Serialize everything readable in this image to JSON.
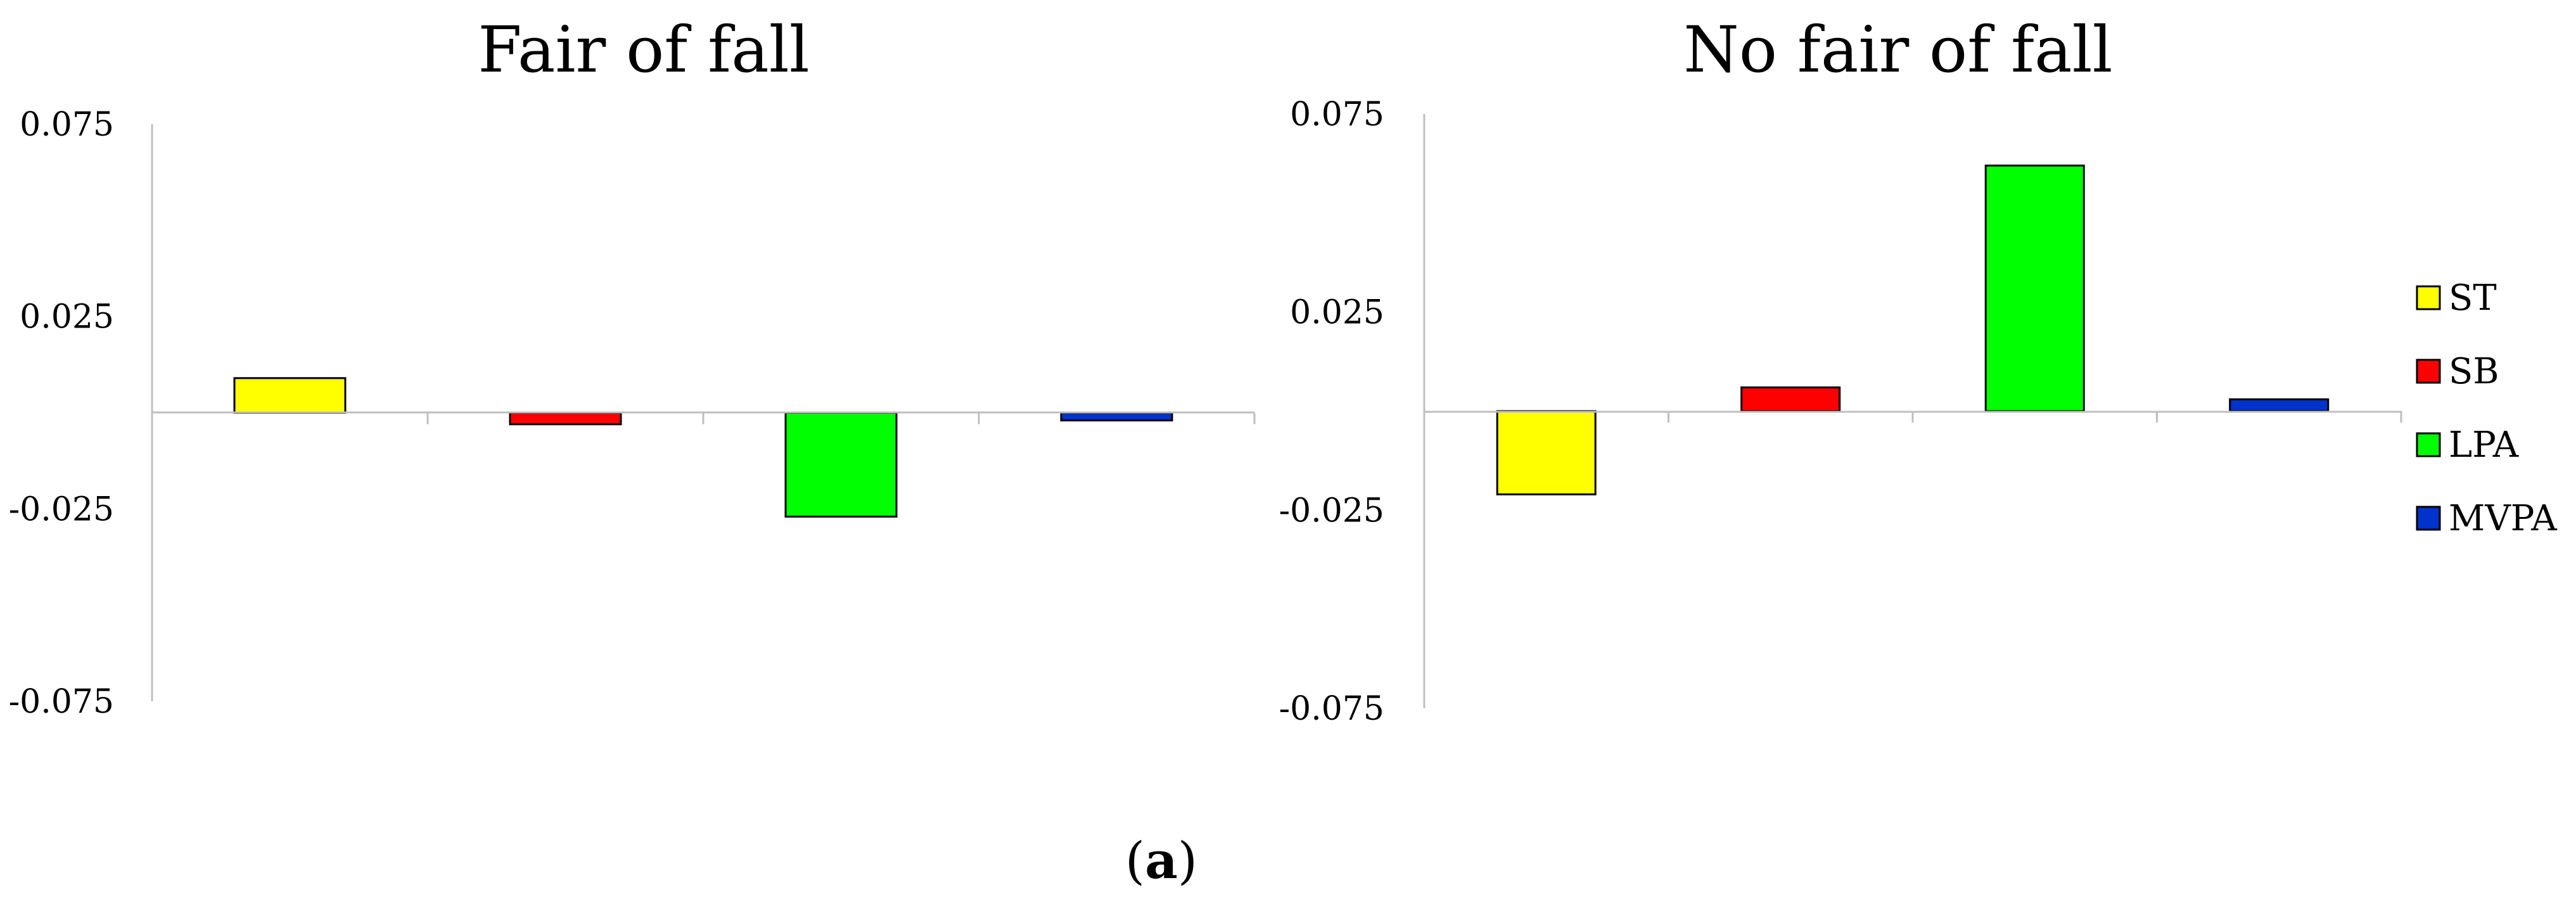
{
  "caption": {
    "open": "(",
    "letter": "a",
    "close": ")"
  },
  "legend": {
    "placement": "right",
    "items": [
      {
        "label": "ST",
        "color": "#FFFF00"
      },
      {
        "label": "SB",
        "color": "#FF0000"
      },
      {
        "label": "LPA",
        "color": "#00FF00"
      },
      {
        "label": "MVPA",
        "color": "#0033CC"
      }
    ]
  },
  "chart_data": [
    {
      "type": "bar",
      "title": "Fair of fall",
      "xlabel": "",
      "ylabel": "",
      "categories": [
        "ST",
        "SB",
        "LPA",
        "MVPA"
      ],
      "values": [
        0.009,
        -0.003,
        -0.027,
        -0.002
      ],
      "colors": [
        "#FFFF00",
        "#FF0000",
        "#00FF00",
        "#0033CC"
      ],
      "ylim": [
        -0.075,
        0.075
      ],
      "yticks": [
        -0.075,
        -0.025,
        0.025,
        0.075
      ],
      "ytick_labels": [
        "-0.075",
        "-0.025",
        "0.025",
        "0.075"
      ],
      "grid": false
    },
    {
      "type": "bar",
      "title": "No fair of fall",
      "xlabel": "",
      "ylabel": "",
      "categories": [
        "ST",
        "SB",
        "LPA",
        "MVPA"
      ],
      "values": [
        -0.021,
        0.006,
        0.062,
        0.003
      ],
      "colors": [
        "#FFFF00",
        "#FF0000",
        "#00FF00",
        "#0033CC"
      ],
      "ylim": [
        -0.075,
        0.075
      ],
      "yticks": [
        -0.075,
        -0.025,
        0.025,
        0.075
      ],
      "ytick_labels": [
        "-0.075",
        "-0.025",
        "0.025",
        "0.075"
      ],
      "grid": false
    }
  ]
}
